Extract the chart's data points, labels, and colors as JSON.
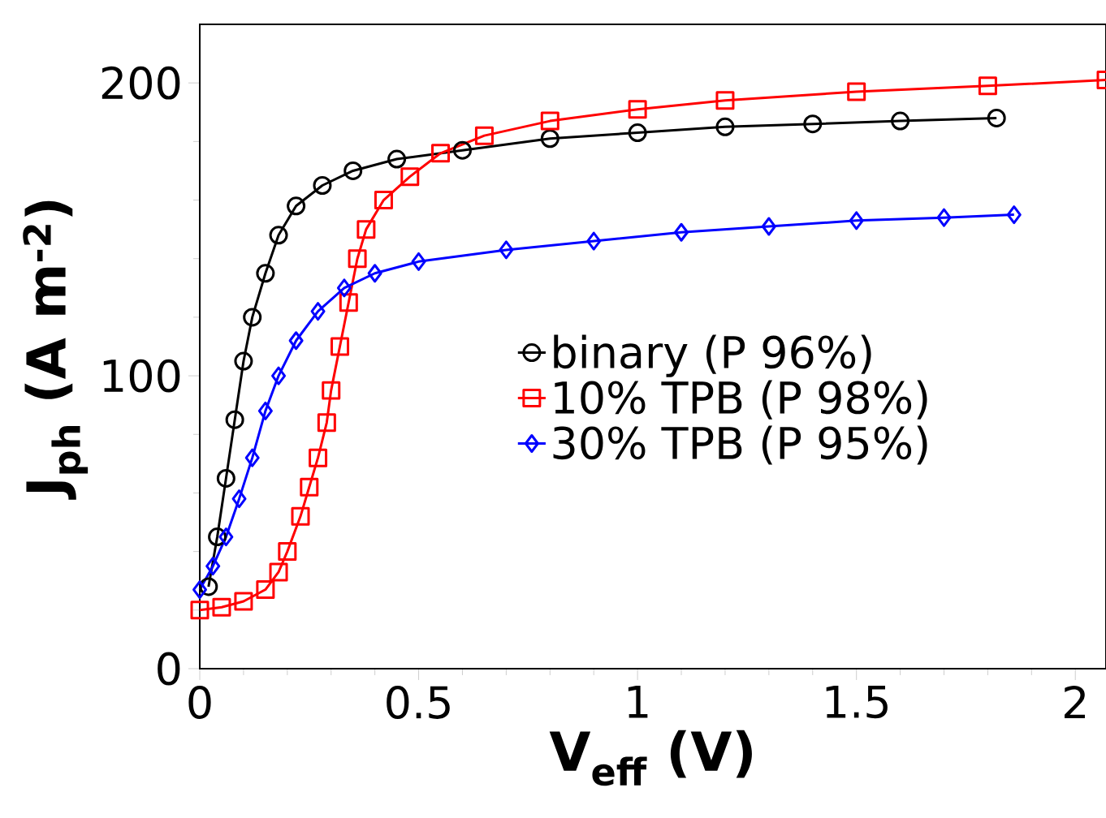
{
  "chart_data": {
    "type": "line",
    "xlabel": "V$_{eff}$ (V)",
    "ylabel": "J$_{ph}$ (A m$^{-2}$)",
    "xlim": [
      0,
      2.07
    ],
    "ylim": [
      0,
      220
    ],
    "xticks": [
      0,
      0.5,
      1,
      1.5,
      2
    ],
    "yticks": [
      0,
      100,
      200
    ],
    "grid": false,
    "legend": "center",
    "series": [
      {
        "name": "binary (P 96%)",
        "color": "#000000",
        "marker": "circle",
        "x": [
          0.02,
          0.04,
          0.06,
          0.08,
          0.1,
          0.12,
          0.15,
          0.18,
          0.22,
          0.28,
          0.35,
          0.45,
          0.6,
          0.8,
          1.0,
          1.2,
          1.4,
          1.6,
          1.82
        ],
        "values": [
          28,
          45,
          65,
          85,
          105,
          120,
          135,
          148,
          158,
          165,
          170,
          174,
          177,
          181,
          183,
          185,
          186,
          187,
          188
        ]
      },
      {
        "name": "10% TPB (P 98%)",
        "color": "#ff0000",
        "marker": "square",
        "x": [
          0.0,
          0.05,
          0.1,
          0.15,
          0.18,
          0.2,
          0.23,
          0.25,
          0.27,
          0.29,
          0.3,
          0.32,
          0.34,
          0.36,
          0.38,
          0.42,
          0.48,
          0.55,
          0.65,
          0.8,
          1.0,
          1.2,
          1.5,
          1.8,
          2.07
        ],
        "values": [
          20,
          21,
          23,
          27,
          33,
          40,
          52,
          62,
          72,
          84,
          95,
          110,
          125,
          140,
          150,
          160,
          168,
          176,
          182,
          187,
          191,
          194,
          197,
          199,
          201
        ]
      },
      {
        "name": "30% TPB (P 95%)",
        "color": "#0000ff",
        "marker": "diamond",
        "x": [
          0.0,
          0.03,
          0.06,
          0.09,
          0.12,
          0.15,
          0.18,
          0.22,
          0.27,
          0.33,
          0.4,
          0.5,
          0.7,
          0.9,
          1.1,
          1.3,
          1.5,
          1.7,
          1.86
        ],
        "values": [
          27,
          35,
          45,
          58,
          72,
          88,
          100,
          112,
          122,
          130,
          135,
          139,
          143,
          146,
          149,
          151,
          153,
          154,
          155
        ]
      }
    ]
  }
}
